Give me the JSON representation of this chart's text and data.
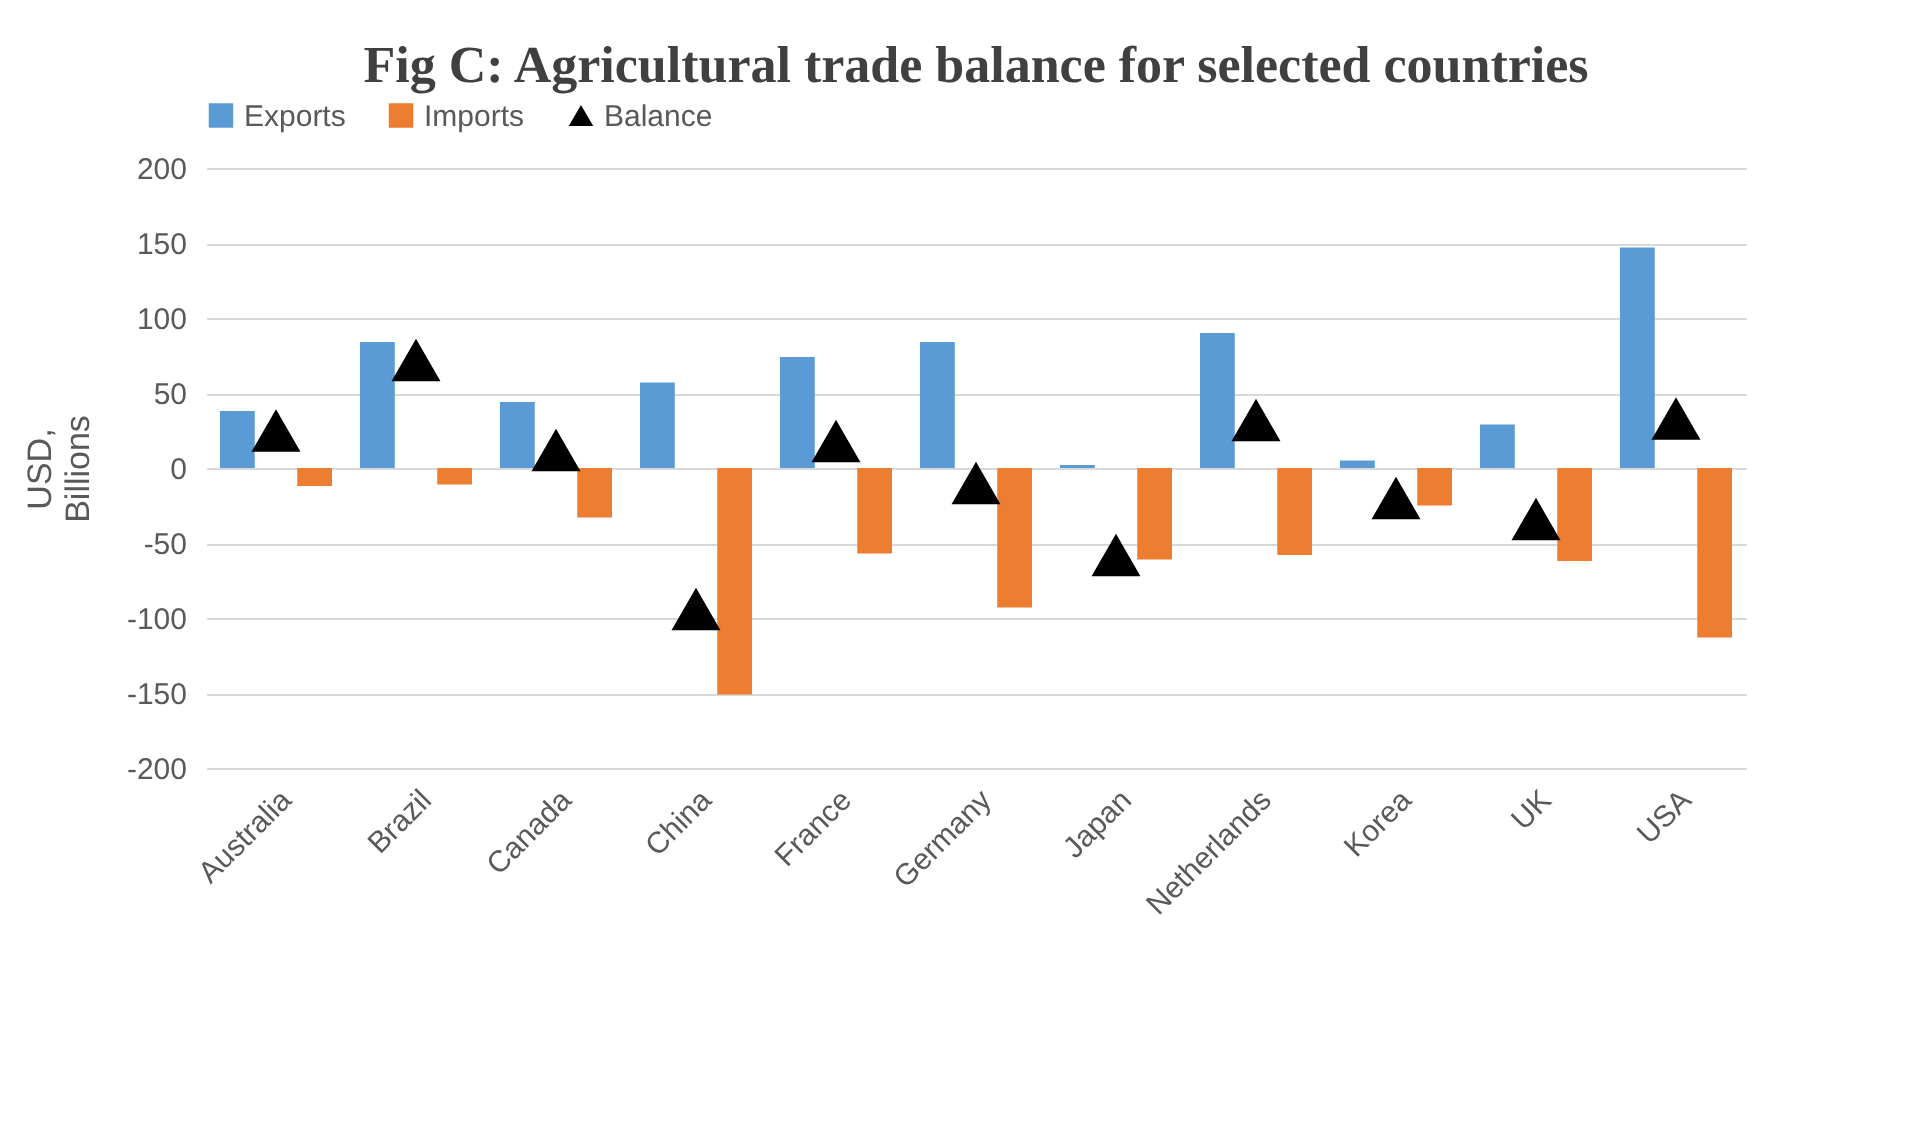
{
  "chart_data": {
    "type": "bar",
    "title": "Fig C: Agricultural trade balance for selected countries",
    "ylabel": "USD, Billions",
    "categories": [
      "Australia",
      "Brazil",
      "Canada",
      "China",
      "France",
      "Germany",
      "Japan",
      "Netherlands",
      "Korea",
      "UK",
      "USA"
    ],
    "series": [
      {
        "name": "Exports",
        "color": "#5b9bd5",
        "values": [
          38,
          84,
          44,
          57,
          74,
          84,
          2,
          90,
          5,
          29,
          147
        ]
      },
      {
        "name": "Imports",
        "color": "#ed7d31",
        "values": [
          -12,
          -11,
          -33,
          -151,
          -57,
          -93,
          -61,
          -58,
          -25,
          -62,
          -113
        ]
      },
      {
        "name": "Balance",
        "type": "scatter",
        "marker": "triangle",
        "color": "#000000",
        "values": [
          25,
          72,
          12,
          -94,
          18,
          -10,
          -58,
          32,
          -20,
          -34,
          33
        ]
      }
    ],
    "ylim": [
      -200,
      200
    ],
    "yticks": [
      -200,
      -150,
      -100,
      -50,
      0,
      50,
      100,
      150,
      200
    ],
    "grid": "y",
    "legend": "top"
  }
}
